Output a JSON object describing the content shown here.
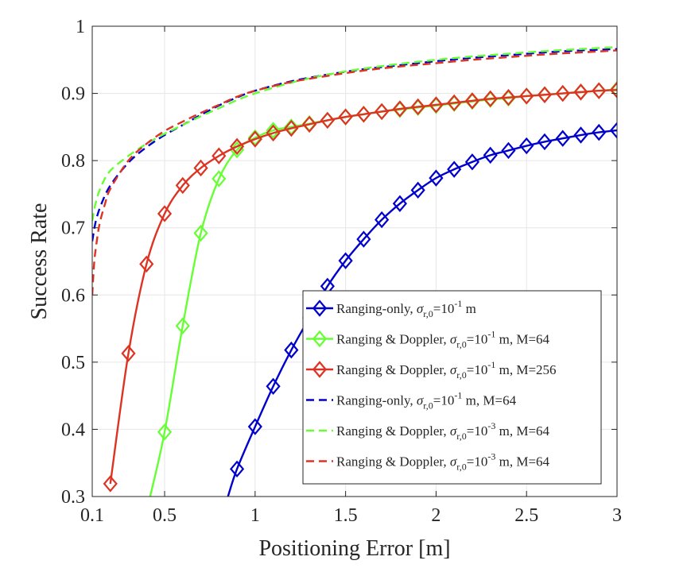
{
  "chart_data": {
    "type": "line",
    "xlabel": "Positioning Error [m]",
    "ylabel": "Success Rate",
    "xlim": [
      0.1,
      3
    ],
    "ylim": [
      0.3,
      1
    ],
    "x_ticks": [
      0.1,
      0.5,
      1,
      1.5,
      2,
      2.5,
      3
    ],
    "x_tick_labels": [
      "0.1",
      "0.5",
      "1",
      "1.5",
      "2",
      "2.5",
      "3"
    ],
    "y_ticks": [
      0.3,
      0.4,
      0.5,
      0.6,
      0.7,
      0.8,
      0.9,
      1
    ],
    "y_tick_labels": [
      "0.3",
      "0.4",
      "0.5",
      "0.6",
      "0.7",
      "0.8",
      "0.9",
      "1"
    ],
    "grid": true,
    "legend_position": "bottom-right",
    "series": [
      {
        "name": "Ranging-only, σr,0=10⁻¹ m",
        "legend": {
          "prefix": "Ranging-only, ",
          "sub": "r,0",
          "exp": "-1",
          "suffix": " m"
        },
        "color": "#0000cc",
        "style": "solid",
        "marker": "diamond",
        "x": [
          0.85,
          0.9,
          1.0,
          1.1,
          1.2,
          1.3,
          1.4,
          1.5,
          1.6,
          1.7,
          1.8,
          1.9,
          2.0,
          2.1,
          2.2,
          2.3,
          2.4,
          2.5,
          2.6,
          2.7,
          2.8,
          2.9,
          3.0
        ],
        "y": [
          0.3,
          0.341,
          0.404,
          0.464,
          0.518,
          0.566,
          0.613,
          0.651,
          0.683,
          0.712,
          0.736,
          0.756,
          0.774,
          0.787,
          0.798,
          0.808,
          0.815,
          0.822,
          0.828,
          0.833,
          0.838,
          0.842,
          0.845
        ]
      },
      {
        "name": "Ranging & Doppler, σr,0=10⁻¹ m, M=64",
        "legend": {
          "prefix": "Ranging & Doppler, ",
          "sub": "r,0",
          "exp": "-1",
          "suffix": " m, M=64"
        },
        "color": "#66ff33",
        "style": "solid",
        "marker": "diamond",
        "x": [
          0.42,
          0.5,
          0.6,
          0.7,
          0.8,
          0.9,
          1.0,
          1.1,
          1.2,
          1.3,
          1.4,
          1.5,
          1.6,
          1.7,
          1.8,
          1.9,
          2.0,
          2.1,
          2.2,
          2.3,
          2.4,
          2.5,
          2.6,
          2.7,
          2.8,
          2.9,
          3.0
        ],
        "y": [
          0.3,
          0.396,
          0.554,
          0.692,
          0.773,
          0.816,
          0.834,
          0.845,
          0.85,
          0.855,
          0.86,
          0.865,
          0.869,
          0.873,
          0.876,
          0.879,
          0.882,
          0.885,
          0.888,
          0.891,
          0.893,
          0.896,
          0.898,
          0.9,
          0.902,
          0.904,
          0.906
        ]
      },
      {
        "name": "Ranging & Doppler, σr,0=10⁻¹ m, M=256",
        "legend": {
          "prefix": "Ranging & Doppler, ",
          "sub": "r,0",
          "exp": "-1",
          "suffix": " m, M=256"
        },
        "color": "#dd3322",
        "style": "solid",
        "marker": "diamond",
        "x": [
          0.2,
          0.3,
          0.4,
          0.5,
          0.6,
          0.7,
          0.8,
          0.9,
          1.0,
          1.1,
          1.2,
          1.3,
          1.4,
          1.5,
          1.6,
          1.7,
          1.8,
          1.9,
          2.0,
          2.1,
          2.2,
          2.3,
          2.4,
          2.5,
          2.6,
          2.7,
          2.8,
          2.9,
          3.0
        ],
        "y": [
          0.319,
          0.513,
          0.646,
          0.721,
          0.763,
          0.789,
          0.807,
          0.821,
          0.832,
          0.841,
          0.848,
          0.854,
          0.86,
          0.865,
          0.869,
          0.873,
          0.877,
          0.88,
          0.883,
          0.886,
          0.889,
          0.892,
          0.894,
          0.896,
          0.898,
          0.9,
          0.902,
          0.904,
          0.905
        ]
      },
      {
        "name": "Ranging-only, σr,0=10⁻¹ m, M=64",
        "legend": {
          "prefix": "Ranging-only, ",
          "sub": "r,0",
          "exp": "-1",
          "suffix": " m, M=64"
        },
        "color": "#0000cc",
        "style": "dashed",
        "marker": "none",
        "x": [
          0.1,
          0.12,
          0.15,
          0.2,
          0.3,
          0.4,
          0.5,
          0.6,
          0.7,
          0.8,
          0.9,
          1.0,
          1.2,
          1.4,
          1.6,
          1.8,
          2.0,
          2.2,
          2.4,
          2.6,
          2.8,
          3.0
        ],
        "y": [
          0.68,
          0.71,
          0.735,
          0.763,
          0.797,
          0.82,
          0.838,
          0.853,
          0.868,
          0.882,
          0.894,
          0.904,
          0.918,
          0.928,
          0.936,
          0.942,
          0.948,
          0.953,
          0.957,
          0.961,
          0.964,
          0.966
        ]
      },
      {
        "name": "Ranging & Doppler, σr,0=10⁻³ m, M=64",
        "legend": {
          "prefix": "Ranging & Doppler, ",
          "sub": "r,0",
          "exp": "-3",
          "suffix": " m, M=64"
        },
        "color": "#66ff33",
        "style": "dashed",
        "marker": "none",
        "x": [
          0.1,
          0.12,
          0.15,
          0.2,
          0.3,
          0.4,
          0.5,
          0.6,
          0.7,
          0.8,
          0.9,
          1.0,
          1.2,
          1.4,
          1.6,
          1.8,
          2.0,
          2.2,
          2.4,
          2.6,
          2.8,
          3.0
        ],
        "y": [
          0.71,
          0.738,
          0.762,
          0.785,
          0.807,
          0.825,
          0.84,
          0.853,
          0.866,
          0.878,
          0.89,
          0.9,
          0.916,
          0.928,
          0.937,
          0.944,
          0.95,
          0.955,
          0.959,
          0.963,
          0.966,
          0.969
        ]
      },
      {
        "name": "Ranging & Doppler, σr,0=10⁻³ m, M=64",
        "legend": {
          "prefix": "Ranging & Doppler, ",
          "sub": "r,0",
          "exp": "-3",
          "suffix": " m, M=64"
        },
        "color": "#dd3322",
        "style": "dashed",
        "marker": "none",
        "x": [
          0.1,
          0.11,
          0.12,
          0.14,
          0.17,
          0.2,
          0.3,
          0.4,
          0.5,
          0.6,
          0.7,
          0.8,
          0.9,
          1.0,
          1.2,
          1.4,
          1.6,
          1.8,
          2.0,
          2.2,
          2.4,
          2.6,
          2.8,
          3.0
        ],
        "y": [
          0.6,
          0.645,
          0.67,
          0.705,
          0.735,
          0.758,
          0.8,
          0.825,
          0.844,
          0.858,
          0.871,
          0.883,
          0.895,
          0.904,
          0.917,
          0.926,
          0.934,
          0.94,
          0.945,
          0.95,
          0.954,
          0.958,
          0.961,
          0.964
        ]
      }
    ]
  }
}
